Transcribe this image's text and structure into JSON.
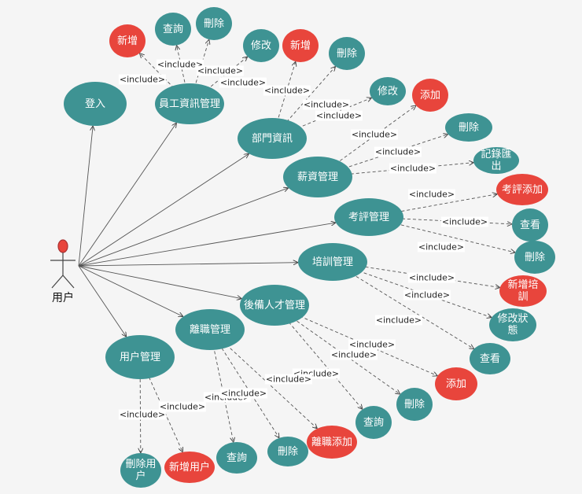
{
  "actor": {
    "label": "用户"
  },
  "nodes": [
    {
      "label": "登入"
    },
    {
      "label": "員工資訊管理"
    },
    {
      "label": "部門資訊"
    },
    {
      "label": "薪資管理"
    },
    {
      "label": "考評管理"
    },
    {
      "label": "培訓管理"
    },
    {
      "label": "後備人才管理"
    },
    {
      "label": "離職管理"
    },
    {
      "label": "用户管理"
    },
    {
      "label": "新增"
    },
    {
      "label": "查詢"
    },
    {
      "label": "刪除"
    },
    {
      "label": "修改"
    },
    {
      "label": "新增"
    },
    {
      "label": "刪除"
    },
    {
      "label": "修改"
    },
    {
      "label": "添加"
    },
    {
      "label": "刪除"
    },
    {
      "label": "記錄匯出"
    },
    {
      "label": "考評添加"
    },
    {
      "label": "查看"
    },
    {
      "label": "刪除"
    },
    {
      "label": "新增培訓"
    },
    {
      "label": "修改狀態"
    },
    {
      "label": "查看"
    },
    {
      "label": "添加"
    },
    {
      "label": "刪除"
    },
    {
      "label": "查詢"
    },
    {
      "label": "離職添加"
    },
    {
      "label": "刪除"
    },
    {
      "label": "查詢"
    },
    {
      "label": "新增用户"
    },
    {
      "label": "刪除用户"
    }
  ],
  "edges": [
    {
      "label": "<include>"
    },
    {
      "label": "<include>"
    },
    {
      "label": "<include>"
    },
    {
      "label": "<include>"
    },
    {
      "label": "<include>"
    },
    {
      "label": "<include>"
    },
    {
      "label": "<include>"
    },
    {
      "label": "<include>"
    },
    {
      "label": "<include>"
    },
    {
      "label": "<include>"
    },
    {
      "label": "<include>"
    },
    {
      "label": "<include>"
    },
    {
      "label": "<include>"
    },
    {
      "label": "<include>"
    },
    {
      "label": "<include>"
    },
    {
      "label": "<include>"
    },
    {
      "label": "<include>"
    },
    {
      "label": "<include>"
    },
    {
      "label": "<include>"
    },
    {
      "label": "<include>"
    },
    {
      "label": "<include>"
    },
    {
      "label": "<include>"
    },
    {
      "label": "<include>"
    },
    {
      "label": "<include>"
    }
  ]
}
